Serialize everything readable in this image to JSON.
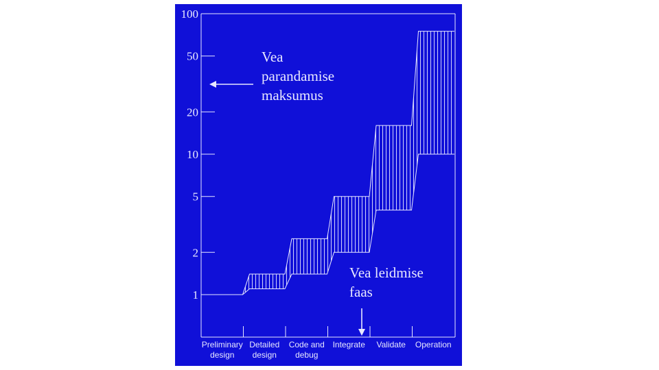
{
  "chart_data": {
    "type": "area",
    "scale": "log",
    "ylim": [
      0.55,
      100
    ],
    "yticks": [
      {
        "value": 100,
        "label": "100"
      },
      {
        "value": 50,
        "label": "50"
      },
      {
        "value": 20,
        "label": "20"
      },
      {
        "value": 10,
        "label": "10"
      },
      {
        "value": 5,
        "label": "5"
      },
      {
        "value": 2,
        "label": "2"
      },
      {
        "value": 1,
        "label": "1"
      }
    ],
    "categories": [
      [
        "Preliminary",
        "design"
      ],
      [
        "Detailed",
        "design"
      ],
      [
        "Code and",
        "debug"
      ],
      [
        "Integrate"
      ],
      [
        "Validate"
      ],
      [
        "Operation"
      ]
    ],
    "series": [
      {
        "role": "low",
        "values": [
          1,
          1.1,
          1.4,
          2,
          4,
          10
        ]
      },
      {
        "role": "high",
        "values": [
          1,
          1.4,
          2.5,
          5,
          16,
          75
        ]
      }
    ],
    "annotations": [
      {
        "lines": [
          "Vea",
          "parandamise",
          "maksumus"
        ],
        "arrow": "left"
      },
      {
        "lines": [
          "Vea leidmise",
          "faas"
        ],
        "arrow": "down"
      }
    ],
    "colors": {
      "background": "#1010d8",
      "ink": "#e8e8ff"
    },
    "grid": false
  }
}
